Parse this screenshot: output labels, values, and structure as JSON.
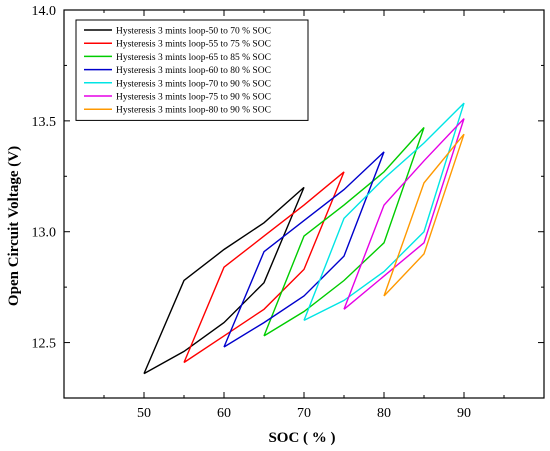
{
  "chart_data": {
    "type": "line",
    "title": "",
    "xlabel": "SOC ( % )",
    "ylabel": "Open Circuit Voltage (V)",
    "xlim": [
      40,
      100
    ],
    "ylim": [
      12.25,
      14.0
    ],
    "x_ticks": [
      50,
      60,
      70,
      80,
      90
    ],
    "y_ticks": [
      12.5,
      13.0,
      13.5,
      14.0
    ],
    "y_tick_labels": [
      "12.5",
      "13.0",
      "13.5",
      "14.0"
    ],
    "grid": false,
    "legend_position": "top-left",
    "series": [
      {
        "name": "Hysteresis 3 mints loop-50 to 70 % SOC",
        "color": "#000000",
        "x": [
          50,
          55,
          60,
          65,
          70,
          65,
          60,
          55,
          50
        ],
        "y": [
          12.36,
          12.46,
          12.59,
          12.77,
          13.2,
          13.04,
          12.92,
          12.78,
          12.36
        ]
      },
      {
        "name": "Hysteresis 3 mints loop-55 to 75 % SOC",
        "color": "#ff0000",
        "x": [
          55,
          60,
          65,
          70,
          75,
          70,
          65,
          60,
          55
        ],
        "y": [
          12.41,
          12.53,
          12.65,
          12.83,
          13.27,
          13.12,
          12.98,
          12.84,
          12.41
        ]
      },
      {
        "name": "Hysteresis 3 mints loop-65 to 85 % SOC",
        "color": "#00cc00",
        "x": [
          65,
          70,
          75,
          80,
          85,
          80,
          75,
          70,
          65
        ],
        "y": [
          12.53,
          12.64,
          12.78,
          12.95,
          13.47,
          13.27,
          13.12,
          12.98,
          12.53
        ]
      },
      {
        "name": "Hysteresis 3 mints loop-60 to 80 % SOC",
        "color": "#0000cc",
        "x": [
          60,
          65,
          70,
          75,
          80,
          75,
          70,
          65,
          60
        ],
        "y": [
          12.48,
          12.59,
          12.71,
          12.89,
          13.36,
          13.19,
          13.05,
          12.91,
          12.48
        ]
      },
      {
        "name": "Hysteresis 3 mints loop-70 to 90 % SOC",
        "color": "#00e5e5",
        "x": [
          70,
          75,
          80,
          85,
          90,
          85,
          80,
          75,
          70
        ],
        "y": [
          12.6,
          12.69,
          12.82,
          13.0,
          13.58,
          13.4,
          13.24,
          13.06,
          12.6
        ]
      },
      {
        "name": "Hysteresis 3 mints loop-75 to 90 % SOC",
        "color": "#e600e6",
        "x": [
          75,
          80,
          85,
          90,
          85,
          80,
          75
        ],
        "y": [
          12.65,
          12.8,
          12.95,
          13.51,
          13.32,
          13.12,
          12.65
        ]
      },
      {
        "name": "Hysteresis 3 mints loop-80 to 90 % SOC",
        "color": "#ff9900",
        "x": [
          80,
          85,
          90,
          85,
          80
        ],
        "y": [
          12.71,
          12.9,
          13.44,
          13.22,
          12.71
        ]
      }
    ]
  }
}
